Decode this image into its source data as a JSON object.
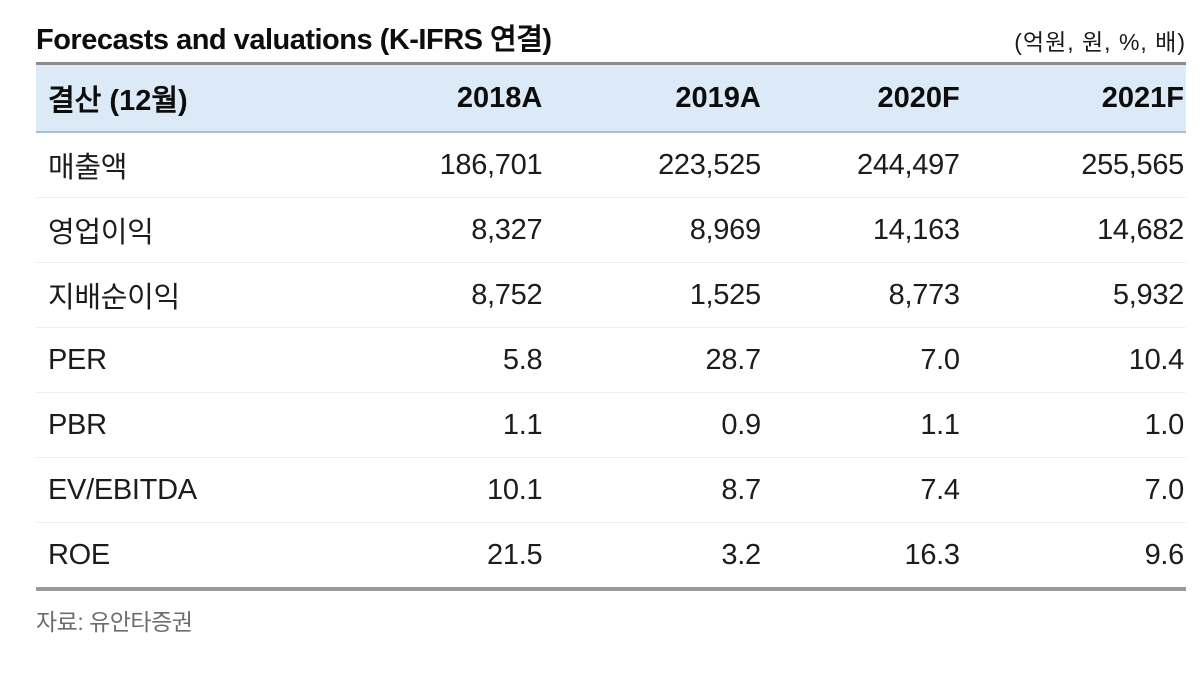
{
  "page": {
    "title": "Forecasts and valuations (K-IFRS 연결)",
    "units": "(억원, 원, %, 배)",
    "source": "자료: 유안타증권"
  },
  "colors": {
    "header_background": "#dce9f6",
    "rule_heavy": "#8b8b8b",
    "rule_header_bottom": "#aebfd0",
    "body_text": "#1c1c1c",
    "source_text": "#6d6d6d"
  },
  "table": {
    "header": [
      "결산 (12월)",
      "2018A",
      "2019A",
      "2020F",
      "2021F"
    ],
    "rows": [
      {
        "label": "매출액",
        "values": [
          "186,701",
          "223,525",
          "244,497",
          "255,565"
        ]
      },
      {
        "label": "영업이익",
        "values": [
          "8,327",
          "8,969",
          "14,163",
          "14,682"
        ]
      },
      {
        "label": "지배순이익",
        "values": [
          "8,752",
          "1,525",
          "8,773",
          "5,932"
        ]
      },
      {
        "label": "PER",
        "values": [
          "5.8",
          "28.7",
          "7.0",
          "10.4"
        ]
      },
      {
        "label": "PBR",
        "values": [
          "1.1",
          "0.9",
          "1.1",
          "1.0"
        ]
      },
      {
        "label": "EV/EBITDA",
        "values": [
          "10.1",
          "8.7",
          "7.4",
          "7.0"
        ]
      },
      {
        "label": "ROE",
        "values": [
          "21.5",
          "3.2",
          "16.3",
          "9.6"
        ]
      }
    ]
  }
}
